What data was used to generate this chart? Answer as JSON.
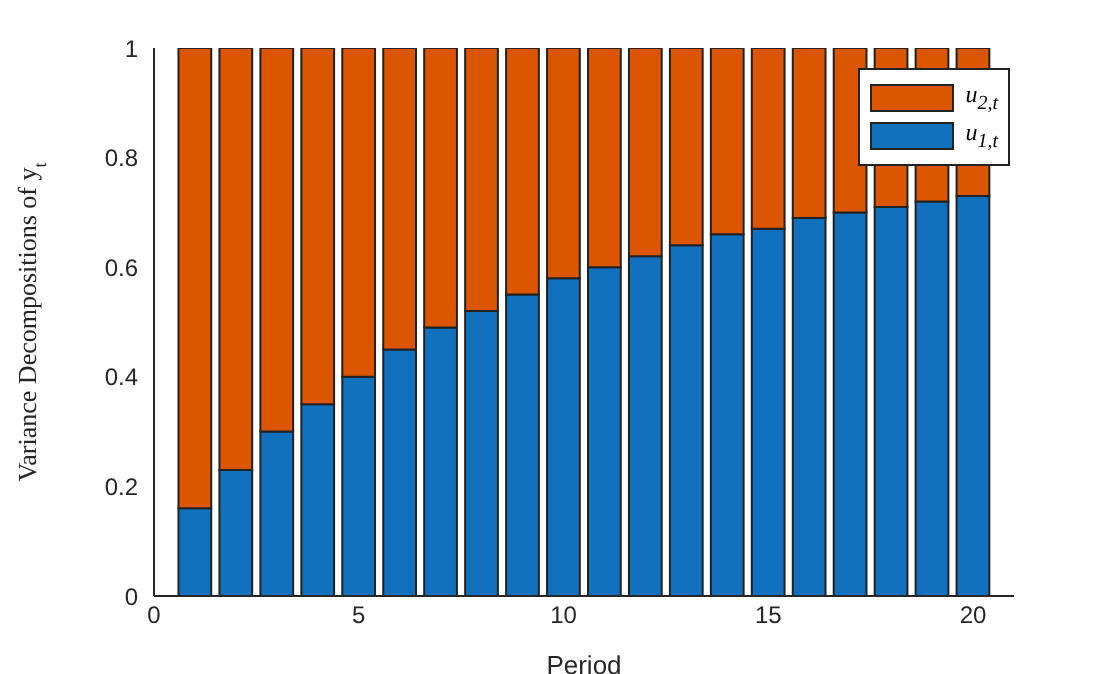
{
  "chart_data": {
    "type": "bar",
    "stacked": true,
    "xlabel": "Period",
    "ylabel": "Variance Decompositions of y$_{t}$",
    "x": [
      1,
      2,
      3,
      4,
      5,
      6,
      7,
      8,
      9,
      10,
      11,
      12,
      13,
      14,
      15,
      16,
      17,
      18,
      19,
      20
    ],
    "series": [
      {
        "name": "u$_{1,t}$",
        "color": "#1171be",
        "values": [
          0.16,
          0.23,
          0.3,
          0.35,
          0.4,
          0.45,
          0.49,
          0.52,
          0.55,
          0.58,
          0.6,
          0.62,
          0.64,
          0.66,
          0.67,
          0.69,
          0.7,
          0.71,
          0.72,
          0.73
        ]
      },
      {
        "name": "u$_{2,t}$",
        "color": "#dc5500",
        "values": [
          0.84,
          0.77,
          0.7,
          0.65,
          0.6,
          0.55,
          0.51,
          0.48,
          0.45,
          0.42,
          0.4,
          0.38,
          0.36,
          0.34,
          0.33,
          0.31,
          0.3,
          0.29,
          0.28,
          0.27
        ]
      }
    ],
    "xlim": [
      0,
      21
    ],
    "xticks": [
      0,
      5,
      10,
      15,
      20
    ],
    "ylim": [
      0,
      1
    ],
    "yticks": [
      0,
      0.2,
      0.4,
      0.6,
      0.8,
      1
    ],
    "legend": "top right"
  }
}
